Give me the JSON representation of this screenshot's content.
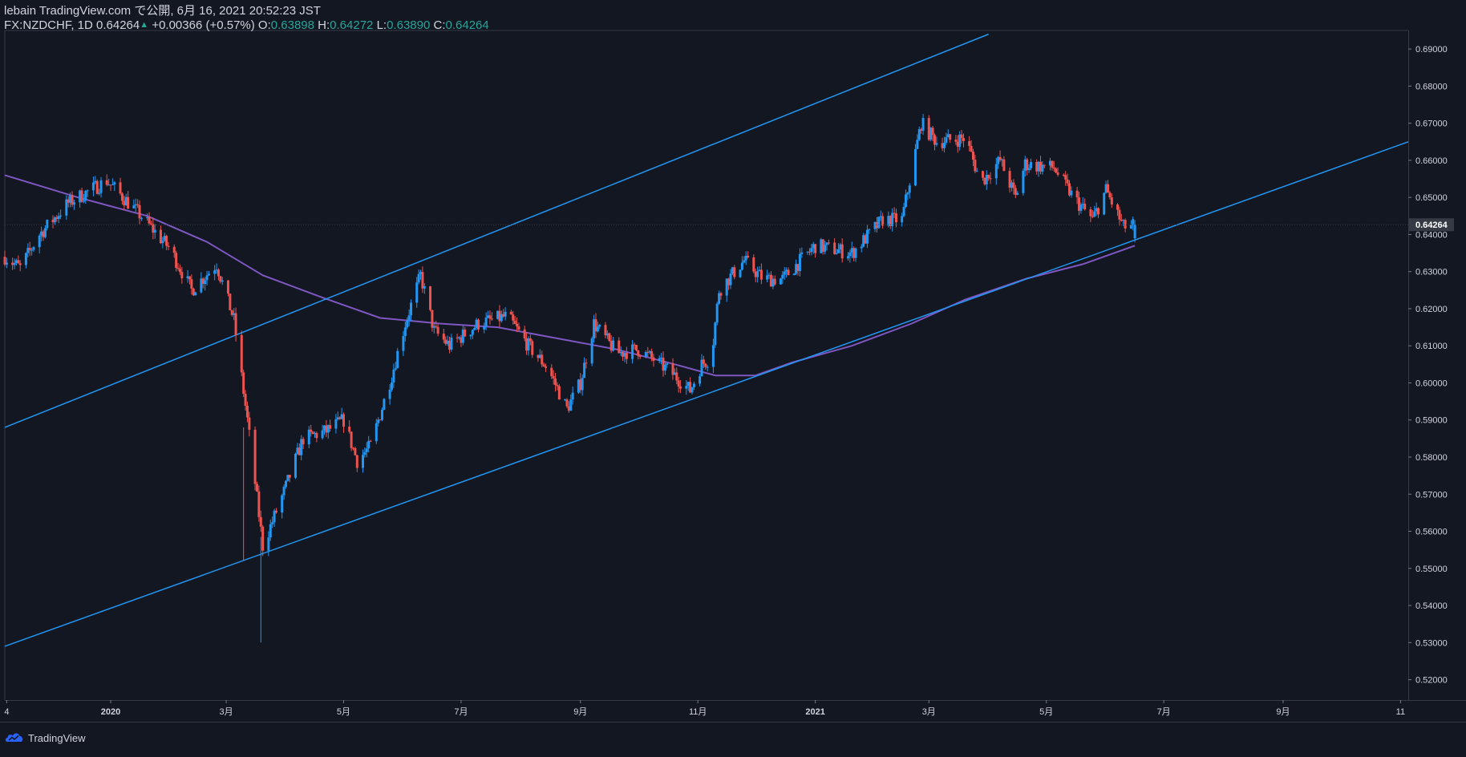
{
  "header": {
    "line1": "lebain TradingView.com で公開, 6月 16, 2021 20:52:23 JST",
    "symbol": "FX:NZDCHF, 1D",
    "last": "0.64264",
    "change_arrow": "▲",
    "change": "+0.00366 (+0.57%)",
    "o_label": "O:",
    "o_value": "0.63898",
    "h_label": "H:",
    "h_value": "0.64272",
    "l_label": "L:",
    "l_value": "0.63890",
    "c_label": "C:",
    "c_value": "0.64264"
  },
  "footer": {
    "brand": "TradingView",
    "logo_icon": "tradingview-cloud-icon"
  },
  "colors": {
    "background": "#131722",
    "up": "#2962ff",
    "up_body": "#2196f3",
    "down": "#ef5350",
    "channel": "#2196f3",
    "ma": "#7e57c2",
    "text": "#d1d4dc",
    "ohlc_value": "#26a69a",
    "axis_line": "#363a45",
    "price_label_bg": "#363a45"
  },
  "chart_data": {
    "type": "candlestick",
    "symbol": "FX:NZDCHF",
    "interval": "1D",
    "grid": false,
    "x_axis": {
      "start": "2019-11-07",
      "end": "2021-11-05",
      "tick_labels": [
        {
          "date": "2019-11-08",
          "label": "4"
        },
        {
          "date": "2020-01-01",
          "label": "2020"
        },
        {
          "date": "2020-03-01",
          "label": "3月"
        },
        {
          "date": "2020-05-01",
          "label": "5月"
        },
        {
          "date": "2020-07-01",
          "label": "7月"
        },
        {
          "date": "2020-09-01",
          "label": "9月"
        },
        {
          "date": "2020-11-01",
          "label": "11月"
        },
        {
          "date": "2021-01-01",
          "label": "2021"
        },
        {
          "date": "2021-03-01",
          "label": "3月"
        },
        {
          "date": "2021-05-01",
          "label": "5月"
        },
        {
          "date": "2021-07-01",
          "label": "7月"
        },
        {
          "date": "2021-09-01",
          "label": "9月"
        },
        {
          "date": "2021-11-01",
          "label": "11"
        }
      ]
    },
    "y_axis": {
      "range": [
        0.5145,
        0.695
      ],
      "ticks": [
        "0.52000",
        "0.53000",
        "0.54000",
        "0.55000",
        "0.56000",
        "0.57000",
        "0.58000",
        "0.59000",
        "0.60000",
        "0.61000",
        "0.62000",
        "0.63000",
        "0.64000",
        "0.65000",
        "0.66000",
        "0.67000",
        "0.68000",
        "0.69000"
      ],
      "last_price_label": "0.64264",
      "last_price": 0.64264
    },
    "price_path": [
      {
        "date": "2019-11-07",
        "price": 0.634
      },
      {
        "date": "2019-11-15",
        "price": 0.631
      },
      {
        "date": "2019-11-25",
        "price": 0.64
      },
      {
        "date": "2019-12-10",
        "price": 0.6485
      },
      {
        "date": "2019-12-30",
        "price": 0.6545
      },
      {
        "date": "2020-01-15",
        "price": 0.646
      },
      {
        "date": "2020-02-01",
        "price": 0.636
      },
      {
        "date": "2020-02-12",
        "price": 0.625
      },
      {
        "date": "2020-02-25",
        "price": 0.632
      },
      {
        "date": "2020-03-05",
        "price": 0.617
      },
      {
        "date": "2020-03-12",
        "price": 0.59
      },
      {
        "date": "2020-03-20",
        "price": 0.556
      },
      {
        "date": "2020-04-01",
        "price": 0.572
      },
      {
        "date": "2020-04-10",
        "price": 0.585
      },
      {
        "date": "2020-04-22",
        "price": 0.587
      },
      {
        "date": "2020-05-01",
        "price": 0.59
      },
      {
        "date": "2020-05-08",
        "price": 0.579
      },
      {
        "date": "2020-05-15",
        "price": 0.583
      },
      {
        "date": "2020-05-26",
        "price": 0.602
      },
      {
        "date": "2020-06-02",
        "price": 0.616
      },
      {
        "date": "2020-06-10",
        "price": 0.629
      },
      {
        "date": "2020-06-17",
        "price": 0.614
      },
      {
        "date": "2020-06-25",
        "price": 0.61
      },
      {
        "date": "2020-07-10",
        "price": 0.616
      },
      {
        "date": "2020-07-25",
        "price": 0.618
      },
      {
        "date": "2020-08-05",
        "price": 0.61
      },
      {
        "date": "2020-08-15",
        "price": 0.604
      },
      {
        "date": "2020-08-25",
        "price": 0.593
      },
      {
        "date": "2020-09-01",
        "price": 0.6
      },
      {
        "date": "2020-09-08",
        "price": 0.616
      },
      {
        "date": "2020-09-20",
        "price": 0.608
      },
      {
        "date": "2020-10-01",
        "price": 0.609
      },
      {
        "date": "2020-10-10",
        "price": 0.606
      },
      {
        "date": "2020-10-20",
        "price": 0.602
      },
      {
        "date": "2020-10-28",
        "price": 0.598
      },
      {
        "date": "2020-11-03",
        "price": 0.605
      },
      {
        "date": "2020-11-08",
        "price": 0.607
      },
      {
        "date": "2020-11-12",
        "price": 0.625
      },
      {
        "date": "2020-11-25",
        "price": 0.633
      },
      {
        "date": "2020-12-05",
        "price": 0.628
      },
      {
        "date": "2020-12-15",
        "price": 0.628
      },
      {
        "date": "2021-01-01",
        "price": 0.637
      },
      {
        "date": "2021-01-20",
        "price": 0.635
      },
      {
        "date": "2021-02-05",
        "price": 0.644
      },
      {
        "date": "2021-02-15",
        "price": 0.644
      },
      {
        "date": "2021-02-25",
        "price": 0.67
      },
      {
        "date": "2021-03-05",
        "price": 0.665
      },
      {
        "date": "2021-03-20",
        "price": 0.666
      },
      {
        "date": "2021-03-28",
        "price": 0.654
      },
      {
        "date": "2021-04-07",
        "price": 0.66
      },
      {
        "date": "2021-04-15",
        "price": 0.65
      },
      {
        "date": "2021-04-20",
        "price": 0.659
      },
      {
        "date": "2021-05-05",
        "price": 0.658
      },
      {
        "date": "2021-05-15",
        "price": 0.65
      },
      {
        "date": "2021-05-25",
        "price": 0.644
      },
      {
        "date": "2021-06-01",
        "price": 0.652
      },
      {
        "date": "2021-06-10",
        "price": 0.642
      },
      {
        "date": "2021-06-16",
        "price": 0.6426
      }
    ],
    "moving_average": [
      {
        "date": "2019-11-07",
        "value": 0.656
      },
      {
        "date": "2019-12-15",
        "value": 0.65
      },
      {
        "date": "2020-01-20",
        "value": 0.645
      },
      {
        "date": "2020-02-20",
        "value": 0.638
      },
      {
        "date": "2020-03-20",
        "value": 0.629
      },
      {
        "date": "2020-04-20",
        "value": 0.623
      },
      {
        "date": "2020-05-20",
        "value": 0.6175
      },
      {
        "date": "2020-06-20",
        "value": 0.616
      },
      {
        "date": "2020-07-20",
        "value": 0.615
      },
      {
        "date": "2020-08-20",
        "value": 0.612
      },
      {
        "date": "2020-09-20",
        "value": 0.609
      },
      {
        "date": "2020-10-20",
        "value": 0.605
      },
      {
        "date": "2020-11-10",
        "value": 0.602
      },
      {
        "date": "2020-12-01",
        "value": 0.602
      },
      {
        "date": "2020-12-20",
        "value": 0.6055
      },
      {
        "date": "2021-01-20",
        "value": 0.61
      },
      {
        "date": "2021-02-20",
        "value": 0.616
      },
      {
        "date": "2021-03-20",
        "value": 0.6225
      },
      {
        "date": "2021-04-20",
        "value": 0.628
      },
      {
        "date": "2021-05-20",
        "value": 0.632
      },
      {
        "date": "2021-06-16",
        "value": 0.637
      }
    ],
    "trend_lines": [
      {
        "name": "upper-channel",
        "start": {
          "date": "2019-11-07",
          "price": 0.588
        },
        "end": {
          "date": "2021-04-01",
          "price": 0.694
        }
      },
      {
        "name": "lower-channel",
        "start": {
          "date": "2019-11-07",
          "price": 0.529
        },
        "end": {
          "date": "2021-11-05",
          "price": 0.665
        }
      }
    ]
  }
}
